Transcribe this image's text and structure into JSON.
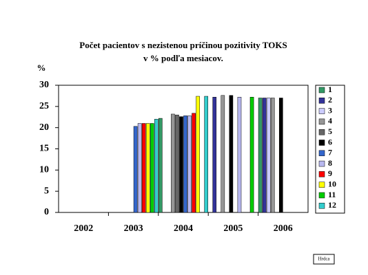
{
  "chart_data": {
    "type": "bar",
    "title": [
      "Počet pacientov s nezistenou príčinou pozitivity TOKS",
      "v % podľa mesiacov."
    ],
    "y_label": "%",
    "categories": [
      "2002",
      "2003",
      "2004",
      "2005",
      "2006"
    ],
    "ylim": [
      0,
      30
    ],
    "yticks": [
      0,
      5,
      10,
      15,
      20,
      25,
      30
    ],
    "grid": false,
    "legend": "right",
    "series": [
      {
        "name": "1",
        "color": "#339966",
        "values": [
          null,
          null,
          22.2,
          null,
          27
        ]
      },
      {
        "name": "2",
        "color": "#333399",
        "values": [
          null,
          null,
          null,
          27.2,
          27
        ]
      },
      {
        "name": "3",
        "color": "#ccccff",
        "values": [
          null,
          null,
          null,
          null,
          27
        ]
      },
      {
        "name": "4",
        "color": "#969696",
        "values": [
          null,
          null,
          23.2,
          27.6,
          27
        ]
      },
      {
        "name": "5",
        "color": "#666666",
        "values": [
          null,
          null,
          23,
          null,
          null
        ]
      },
      {
        "name": "6",
        "color": "#000000",
        "values": [
          null,
          null,
          22.6,
          27.6,
          27
        ]
      },
      {
        "name": "7",
        "color": "#3366cc",
        "values": [
          null,
          20.3,
          22.8,
          null,
          null
        ]
      },
      {
        "name": "8",
        "color": "#b8b8f0",
        "values": [
          null,
          21,
          22.8,
          27.2,
          null
        ]
      },
      {
        "name": "9",
        "color": "#ff0000",
        "values": [
          null,
          21,
          23.4,
          null,
          null
        ]
      },
      {
        "name": "10",
        "color": "#ffff00",
        "values": [
          null,
          21,
          27.4,
          null,
          null
        ]
      },
      {
        "name": "11",
        "color": "#00cc00",
        "values": [
          null,
          21,
          null,
          27.2,
          null
        ]
      },
      {
        "name": "12",
        "color": "#33cccc",
        "values": [
          null,
          22,
          27.4,
          null,
          null
        ]
      }
    ],
    "note": "Hrdca"
  }
}
